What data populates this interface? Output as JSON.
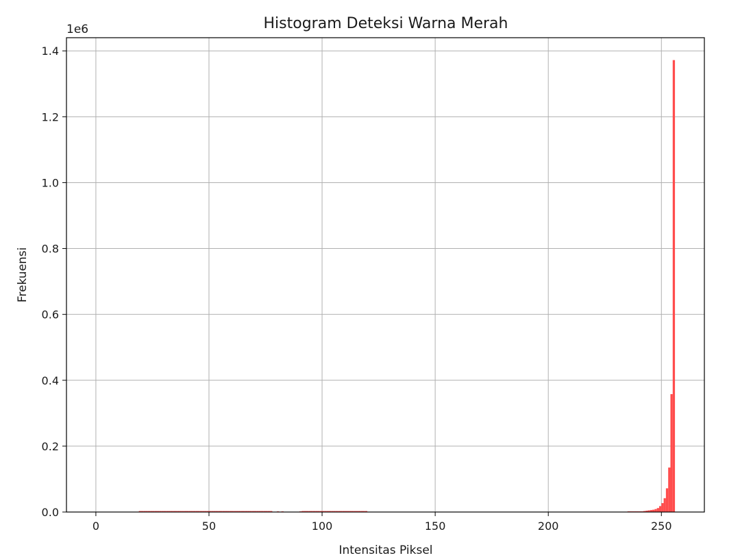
{
  "chart_data": {
    "type": "bar",
    "title": "Histogram Deteksi Warna Merah",
    "xlabel": "Intensitas Piksel",
    "ylabel": "Frekuensi",
    "y_offset_label": "1e6",
    "xlim": [
      -13,
      269
    ],
    "ylim": [
      0,
      1.44
    ],
    "y_unit_multiplier": 1000000,
    "xticks": [
      0,
      50,
      100,
      150,
      200,
      250
    ],
    "yticks": [
      0.0,
      0.2,
      0.4,
      0.6,
      0.8,
      1.0,
      1.2,
      1.4
    ],
    "xtick_labels": [
      "0",
      "50",
      "100",
      "150",
      "200",
      "250"
    ],
    "ytick_labels": [
      "0.0",
      "0.2",
      "0.4",
      "0.6",
      "0.8",
      "1.0",
      "1.2",
      "1.4"
    ],
    "grid": true,
    "bar_color": "#ff4d4d",
    "bin_width": 1,
    "bins": [
      {
        "x": 19,
        "value": 0.003
      },
      {
        "x": 20,
        "value": 0.003
      },
      {
        "x": 21,
        "value": 0.003
      },
      {
        "x": 22,
        "value": 0.003
      },
      {
        "x": 23,
        "value": 0.003
      },
      {
        "x": 24,
        "value": 0.003
      },
      {
        "x": 25,
        "value": 0.003
      },
      {
        "x": 26,
        "value": 0.003
      },
      {
        "x": 27,
        "value": 0.003
      },
      {
        "x": 28,
        "value": 0.003
      },
      {
        "x": 29,
        "value": 0.003
      },
      {
        "x": 30,
        "value": 0.003
      },
      {
        "x": 31,
        "value": 0.003
      },
      {
        "x": 32,
        "value": 0.003
      },
      {
        "x": 33,
        "value": 0.003
      },
      {
        "x": 34,
        "value": 0.003
      },
      {
        "x": 35,
        "value": 0.003
      },
      {
        "x": 36,
        "value": 0.003
      },
      {
        "x": 37,
        "value": 0.003
      },
      {
        "x": 38,
        "value": 0.003
      },
      {
        "x": 39,
        "value": 0.003
      },
      {
        "x": 40,
        "value": 0.003
      },
      {
        "x": 41,
        "value": 0.003
      },
      {
        "x": 42,
        "value": 0.003
      },
      {
        "x": 43,
        "value": 0.003
      },
      {
        "x": 44,
        "value": 0.003
      },
      {
        "x": 45,
        "value": 0.003
      },
      {
        "x": 46,
        "value": 0.003
      },
      {
        "x": 47,
        "value": 0.003
      },
      {
        "x": 48,
        "value": 0.003
      },
      {
        "x": 49,
        "value": 0.003
      },
      {
        "x": 50,
        "value": 0.003
      },
      {
        "x": 51,
        "value": 0.003
      },
      {
        "x": 52,
        "value": 0.003
      },
      {
        "x": 53,
        "value": 0.003
      },
      {
        "x": 54,
        "value": 0.003
      },
      {
        "x": 55,
        "value": 0.003
      },
      {
        "x": 56,
        "value": 0.003
      },
      {
        "x": 57,
        "value": 0.003
      },
      {
        "x": 58,
        "value": 0.003
      },
      {
        "x": 59,
        "value": 0.003
      },
      {
        "x": 60,
        "value": 0.003
      },
      {
        "x": 61,
        "value": 0.003
      },
      {
        "x": 62,
        "value": 0.003
      },
      {
        "x": 63,
        "value": 0.003
      },
      {
        "x": 64,
        "value": 0.003
      },
      {
        "x": 65,
        "value": 0.003
      },
      {
        "x": 66,
        "value": 0.003
      },
      {
        "x": 67,
        "value": 0.003
      },
      {
        "x": 68,
        "value": 0.003
      },
      {
        "x": 69,
        "value": 0.003
      },
      {
        "x": 70,
        "value": 0.003
      },
      {
        "x": 71,
        "value": 0.003
      },
      {
        "x": 72,
        "value": 0.003
      },
      {
        "x": 73,
        "value": 0.003
      },
      {
        "x": 74,
        "value": 0.003
      },
      {
        "x": 75,
        "value": 0.003
      },
      {
        "x": 76,
        "value": 0.003
      },
      {
        "x": 77,
        "value": 0.003
      },
      {
        "x": 80,
        "value": 0.002
      },
      {
        "x": 82,
        "value": 0.002
      },
      {
        "x": 90,
        "value": 0.002
      },
      {
        "x": 91,
        "value": 0.003
      },
      {
        "x": 92,
        "value": 0.003
      },
      {
        "x": 93,
        "value": 0.003
      },
      {
        "x": 94,
        "value": 0.003
      },
      {
        "x": 95,
        "value": 0.003
      },
      {
        "x": 96,
        "value": 0.003
      },
      {
        "x": 97,
        "value": 0.003
      },
      {
        "x": 98,
        "value": 0.003
      },
      {
        "x": 99,
        "value": 0.003
      },
      {
        "x": 100,
        "value": 0.003
      },
      {
        "x": 101,
        "value": 0.003
      },
      {
        "x": 102,
        "value": 0.003
      },
      {
        "x": 103,
        "value": 0.003
      },
      {
        "x": 104,
        "value": 0.003
      },
      {
        "x": 105,
        "value": 0.003
      },
      {
        "x": 106,
        "value": 0.003
      },
      {
        "x": 107,
        "value": 0.003
      },
      {
        "x": 108,
        "value": 0.003
      },
      {
        "x": 109,
        "value": 0.003
      },
      {
        "x": 110,
        "value": 0.003
      },
      {
        "x": 111,
        "value": 0.003
      },
      {
        "x": 112,
        "value": 0.003
      },
      {
        "x": 113,
        "value": 0.003
      },
      {
        "x": 114,
        "value": 0.003
      },
      {
        "x": 115,
        "value": 0.003
      },
      {
        "x": 116,
        "value": 0.003
      },
      {
        "x": 117,
        "value": 0.003
      },
      {
        "x": 118,
        "value": 0.003
      },
      {
        "x": 119,
        "value": 0.003
      },
      {
        "x": 235,
        "value": 0.002
      },
      {
        "x": 236,
        "value": 0.002
      },
      {
        "x": 237,
        "value": 0.002
      },
      {
        "x": 238,
        "value": 0.002
      },
      {
        "x": 239,
        "value": 0.002
      },
      {
        "x": 240,
        "value": 0.002
      },
      {
        "x": 241,
        "value": 0.002
      },
      {
        "x": 242,
        "value": 0.003
      },
      {
        "x": 243,
        "value": 0.004
      },
      {
        "x": 244,
        "value": 0.005
      },
      {
        "x": 245,
        "value": 0.006
      },
      {
        "x": 246,
        "value": 0.007
      },
      {
        "x": 247,
        "value": 0.009
      },
      {
        "x": 248,
        "value": 0.012
      },
      {
        "x": 249,
        "value": 0.018
      },
      {
        "x": 250,
        "value": 0.027
      },
      {
        "x": 251,
        "value": 0.042
      },
      {
        "x": 252,
        "value": 0.072
      },
      {
        "x": 253,
        "value": 0.135
      },
      {
        "x": 254,
        "value": 0.358
      },
      {
        "x": 255,
        "value": 1.372
      }
    ]
  }
}
